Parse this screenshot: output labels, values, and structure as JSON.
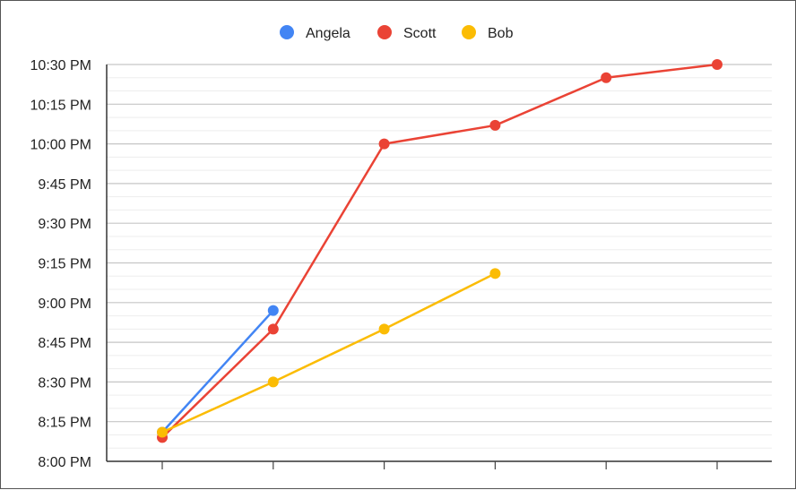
{
  "chart_data": {
    "type": "line",
    "title": "",
    "xlabel": "",
    "ylabel": "",
    "x": [
      1,
      2,
      3,
      4,
      5,
      6
    ],
    "x_tick_labels": [
      "",
      "",
      "",
      "",
      "",
      ""
    ],
    "y_tick_labels": [
      "8:00 PM",
      "8:15 PM",
      "8:30 PM",
      "8:45 PM",
      "9:00 PM",
      "9:15 PM",
      "9:30 PM",
      "9:45 PM",
      "10:00 PM",
      "10:15 PM",
      "10:30 PM"
    ],
    "ylim": [
      "8:00 PM",
      "10:30 PM"
    ],
    "y_unit": "time of day",
    "grid": true,
    "legend_position": "top",
    "series": [
      {
        "name": "Angela",
        "color": "#4285f4",
        "values": [
          "8:11 PM",
          "8:57 PM",
          null,
          null,
          null,
          null
        ]
      },
      {
        "name": "Scott",
        "color": "#ea4335",
        "values": [
          "8:09 PM",
          "8:50 PM",
          "10:00 PM",
          "10:07 PM",
          "10:25 PM",
          "10:30 PM"
        ]
      },
      {
        "name": "Bob",
        "color": "#fbbc04",
        "values": [
          "8:11 PM",
          "8:30 PM",
          "8:50 PM",
          "9:11 PM",
          null,
          null
        ]
      }
    ]
  }
}
